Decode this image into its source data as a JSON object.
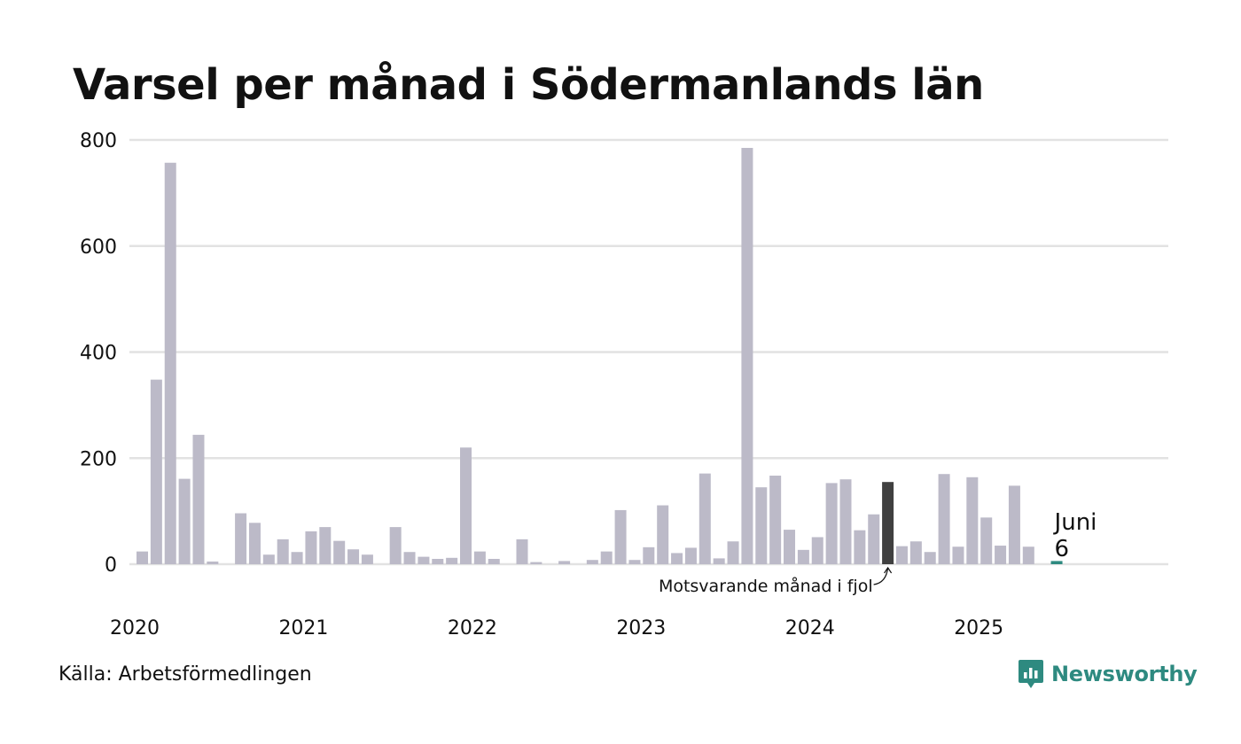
{
  "title": "Varsel per månad i Södermanlands län",
  "source": "Källa: Arbetsförmedlingen",
  "brand": {
    "name": "Newsworthy",
    "icon": "newsworthy-logo-icon",
    "color": "#2e8a80"
  },
  "chart_data": {
    "type": "bar",
    "title": "Varsel per månad i Södermanlands län",
    "xlabel": "",
    "ylabel": "",
    "ylim": [
      0,
      800
    ],
    "yticks": [
      0,
      200,
      400,
      600,
      800
    ],
    "grid": true,
    "x_tick_labels": [
      "2020",
      "2021",
      "2022",
      "2023",
      "2024",
      "2025"
    ],
    "colors": {
      "default": "#bcbac8",
      "same_month": "#404040",
      "latest": "#2e8a80",
      "grid": "#e2e2e2"
    },
    "annotation": "Motsvarande månad i fjol",
    "latest_label": {
      "month": "Juni",
      "value": "6"
    },
    "categories": [
      "2020-01",
      "2020-02",
      "2020-03",
      "2020-04",
      "2020-05",
      "2020-06",
      "2020-07",
      "2020-08",
      "2020-09",
      "2020-10",
      "2020-11",
      "2020-12",
      "2021-01",
      "2021-02",
      "2021-03",
      "2021-04",
      "2021-05",
      "2021-06",
      "2021-07",
      "2021-08",
      "2021-09",
      "2021-10",
      "2021-11",
      "2021-12",
      "2022-01",
      "2022-02",
      "2022-03",
      "2022-04",
      "2022-05",
      "2022-06",
      "2022-07",
      "2022-08",
      "2022-09",
      "2022-10",
      "2022-11",
      "2022-12",
      "2023-01",
      "2023-02",
      "2023-03",
      "2023-04",
      "2023-05",
      "2023-06",
      "2023-07",
      "2023-08",
      "2023-09",
      "2023-10",
      "2023-11",
      "2023-12",
      "2024-01",
      "2024-02",
      "2024-03",
      "2024-04",
      "2024-05",
      "2024-06",
      "2024-07",
      "2024-08",
      "2024-09",
      "2024-10",
      "2024-11",
      "2024-12",
      "2025-01",
      "2025-02",
      "2025-03",
      "2025-04",
      "2025-05",
      "2025-06"
    ],
    "values": [
      24,
      348,
      757,
      161,
      244,
      5,
      0,
      96,
      78,
      18,
      47,
      23,
      62,
      70,
      44,
      28,
      18,
      0,
      70,
      23,
      14,
      10,
      12,
      220,
      24,
      10,
      0,
      47,
      4,
      0,
      6,
      0,
      8,
      24,
      102,
      8,
      32,
      111,
      21,
      31,
      171,
      11,
      43,
      785,
      145,
      167,
      65,
      27,
      51,
      153,
      160,
      64,
      94,
      155,
      34,
      43,
      23,
      170,
      33,
      164,
      88,
      35,
      148,
      33,
      0,
      6
    ],
    "highlight": [
      {
        "category": "2024-06",
        "role": "same_month"
      },
      {
        "category": "2025-06",
        "role": "latest"
      }
    ]
  }
}
